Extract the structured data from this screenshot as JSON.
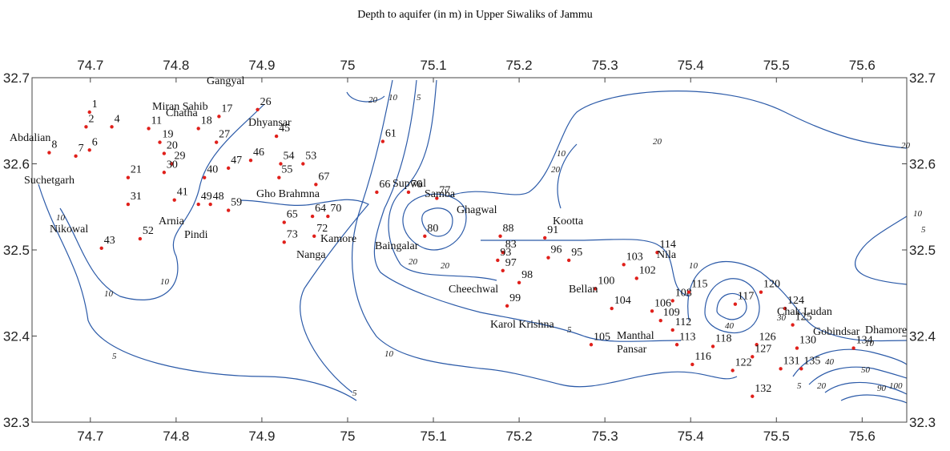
{
  "title": "Depth to aquifer (in m) in Upper Siwaliks of Jammu",
  "xlim": [
    74.632,
    75.652
  ],
  "ylim": [
    32.3,
    32.7
  ],
  "xticks": [
    74.7,
    74.8,
    74.9,
    75,
    75.1,
    75.2,
    75.3,
    75.4,
    75.5,
    75.6
  ],
  "yticks": [
    32.3,
    32.4,
    32.5,
    32.6,
    32.7
  ],
  "points": [
    {
      "label": "1",
      "lon": 74.699,
      "lat": 32.66
    },
    {
      "label": "2",
      "lon": 74.695,
      "lat": 32.643
    },
    {
      "label": "4",
      "lon": 74.725,
      "lat": 32.643
    },
    {
      "label": "6",
      "lon": 74.699,
      "lat": 32.616
    },
    {
      "label": "7",
      "lon": 74.683,
      "lat": 32.609
    },
    {
      "label": "8",
      "lon": 74.652,
      "lat": 32.613
    },
    {
      "label": "11",
      "lon": 74.768,
      "lat": 32.641
    },
    {
      "label": "17",
      "lon": 74.85,
      "lat": 32.655
    },
    {
      "label": "18",
      "lon": 74.826,
      "lat": 32.641
    },
    {
      "label": "19",
      "lon": 74.781,
      "lat": 32.625
    },
    {
      "label": "20",
      "lon": 74.786,
      "lat": 32.612
    },
    {
      "label": "21",
      "lon": 74.744,
      "lat": 32.584
    },
    {
      "label": "26",
      "lon": 74.895,
      "lat": 32.663
    },
    {
      "label": "27",
      "lon": 74.847,
      "lat": 32.625
    },
    {
      "label": "29",
      "lon": 74.795,
      "lat": 32.6
    },
    {
      "label": "30",
      "lon": 74.786,
      "lat": 32.59
    },
    {
      "label": "31",
      "lon": 74.744,
      "lat": 32.553
    },
    {
      "label": "40",
      "lon": 74.833,
      "lat": 32.584
    },
    {
      "label": "41",
      "lon": 74.798,
      "lat": 32.558
    },
    {
      "label": "43",
      "lon": 74.713,
      "lat": 32.502
    },
    {
      "label": "45",
      "lon": 74.917,
      "lat": 32.632
    },
    {
      "label": "46",
      "lon": 74.887,
      "lat": 32.604
    },
    {
      "label": "47",
      "lon": 74.861,
      "lat": 32.595
    },
    {
      "label": "48",
      "lon": 74.84,
      "lat": 32.553
    },
    {
      "label": "49",
      "lon": 74.826,
      "lat": 32.553
    },
    {
      "label": "52",
      "lon": 74.758,
      "lat": 32.513
    },
    {
      "label": "53",
      "lon": 74.948,
      "lat": 32.6
    },
    {
      "label": "54",
      "lon": 74.922,
      "lat": 32.6
    },
    {
      "label": "55",
      "lon": 74.92,
      "lat": 32.584
    },
    {
      "label": "59",
      "lon": 74.861,
      "lat": 32.546
    },
    {
      "label": "61",
      "lon": 75.041,
      "lat": 32.626
    },
    {
      "label": "64",
      "lon": 74.959,
      "lat": 32.539
    },
    {
      "label": "65",
      "lon": 74.926,
      "lat": 32.532
    },
    {
      "label": "66",
      "lon": 75.034,
      "lat": 32.567
    },
    {
      "label": "67",
      "lon": 74.963,
      "lat": 32.576
    },
    {
      "label": "70",
      "lon": 74.977,
      "lat": 32.539
    },
    {
      "label": "72",
      "lon": 74.961,
      "lat": 32.516
    },
    {
      "label": "73",
      "lon": 74.926,
      "lat": 32.509
    },
    {
      "label": "76",
      "lon": 75.071,
      "lat": 32.567
    },
    {
      "label": "77",
      "lon": 75.104,
      "lat": 32.56
    },
    {
      "label": "80",
      "lon": 75.09,
      "lat": 32.516
    },
    {
      "label": "83",
      "lon": 75.181,
      "lat": 32.497
    },
    {
      "label": "88",
      "lon": 75.178,
      "lat": 32.516
    },
    {
      "label": "91",
      "lon": 75.23,
      "lat": 32.514
    },
    {
      "label": "93",
      "lon": 75.175,
      "lat": 32.488
    },
    {
      "label": "95",
      "lon": 75.258,
      "lat": 32.488
    },
    {
      "label": "96",
      "lon": 75.234,
      "lat": 32.491
    },
    {
      "label": "97",
      "lon": 75.181,
      "lat": 32.476
    },
    {
      "label": "98",
      "lon": 75.2,
      "lat": 32.462
    },
    {
      "label": "99",
      "lon": 75.186,
      "lat": 32.435
    },
    {
      "label": "100",
      "lon": 75.289,
      "lat": 32.455
    },
    {
      "label": "102",
      "lon": 75.337,
      "lat": 32.467
    },
    {
      "label": "103",
      "lon": 75.322,
      "lat": 32.483
    },
    {
      "label": "104",
      "lon": 75.308,
      "lat": 32.432
    },
    {
      "label": "105",
      "lon": 75.284,
      "lat": 32.39
    },
    {
      "label": "106",
      "lon": 75.355,
      "lat": 32.429
    },
    {
      "label": "108",
      "lon": 75.379,
      "lat": 32.441
    },
    {
      "label": "109",
      "lon": 75.365,
      "lat": 32.418
    },
    {
      "label": "112",
      "lon": 75.379,
      "lat": 32.407
    },
    {
      "label": "113",
      "lon": 75.384,
      "lat": 32.39
    },
    {
      "label": "114",
      "lon": 75.361,
      "lat": 32.497
    },
    {
      "label": "115",
      "lon": 75.398,
      "lat": 32.451
    },
    {
      "label": "116",
      "lon": 75.402,
      "lat": 32.367
    },
    {
      "label": "117",
      "lon": 75.452,
      "lat": 32.437
    },
    {
      "label": "118",
      "lon": 75.426,
      "lat": 32.388
    },
    {
      "label": "120",
      "lon": 75.482,
      "lat": 32.451
    },
    {
      "label": "122",
      "lon": 75.449,
      "lat": 32.36
    },
    {
      "label": "124",
      "lon": 75.51,
      "lat": 32.432
    },
    {
      "label": "125",
      "lon": 75.519,
      "lat": 32.413
    },
    {
      "label": "126",
      "lon": 75.477,
      "lat": 32.39
    },
    {
      "label": "127",
      "lon": 75.472,
      "lat": 32.376
    },
    {
      "label": "130",
      "lon": 75.524,
      "lat": 32.386
    },
    {
      "label": "131",
      "lon": 75.505,
      "lat": 32.362
    },
    {
      "label": "132",
      "lon": 75.472,
      "lat": 32.33
    },
    {
      "label": "134",
      "lon": 75.59,
      "lat": 32.386
    },
    {
      "label": "135",
      "lon": 75.529,
      "lat": 32.362
    }
  ],
  "places": [
    "Abdalian",
    "Suchetgarh",
    "Nikowal",
    "Chatha",
    "Gangyal",
    "Miran Sahib",
    "Dhyansar",
    "Arnia",
    "Pindi",
    "Gho Brahmna",
    "Kamore",
    "Nanga",
    "Supwal",
    "Samba",
    "Ghagwal",
    "Baingalar",
    "Cheechwal",
    "Karol Krishna",
    "Kootta",
    "Bellan",
    "Manthal",
    "Pansar",
    "Nila",
    "Chak Ludan",
    "Gobindsar",
    "Dhamore"
  ],
  "contour_labels": [
    20,
    10,
    5,
    10,
    10,
    5,
    10,
    20,
    20,
    10,
    5,
    5,
    20,
    20,
    10,
    10,
    40,
    30,
    40,
    50,
    90,
    100,
    20,
    10,
    5,
    5,
    20,
    10
  ]
}
